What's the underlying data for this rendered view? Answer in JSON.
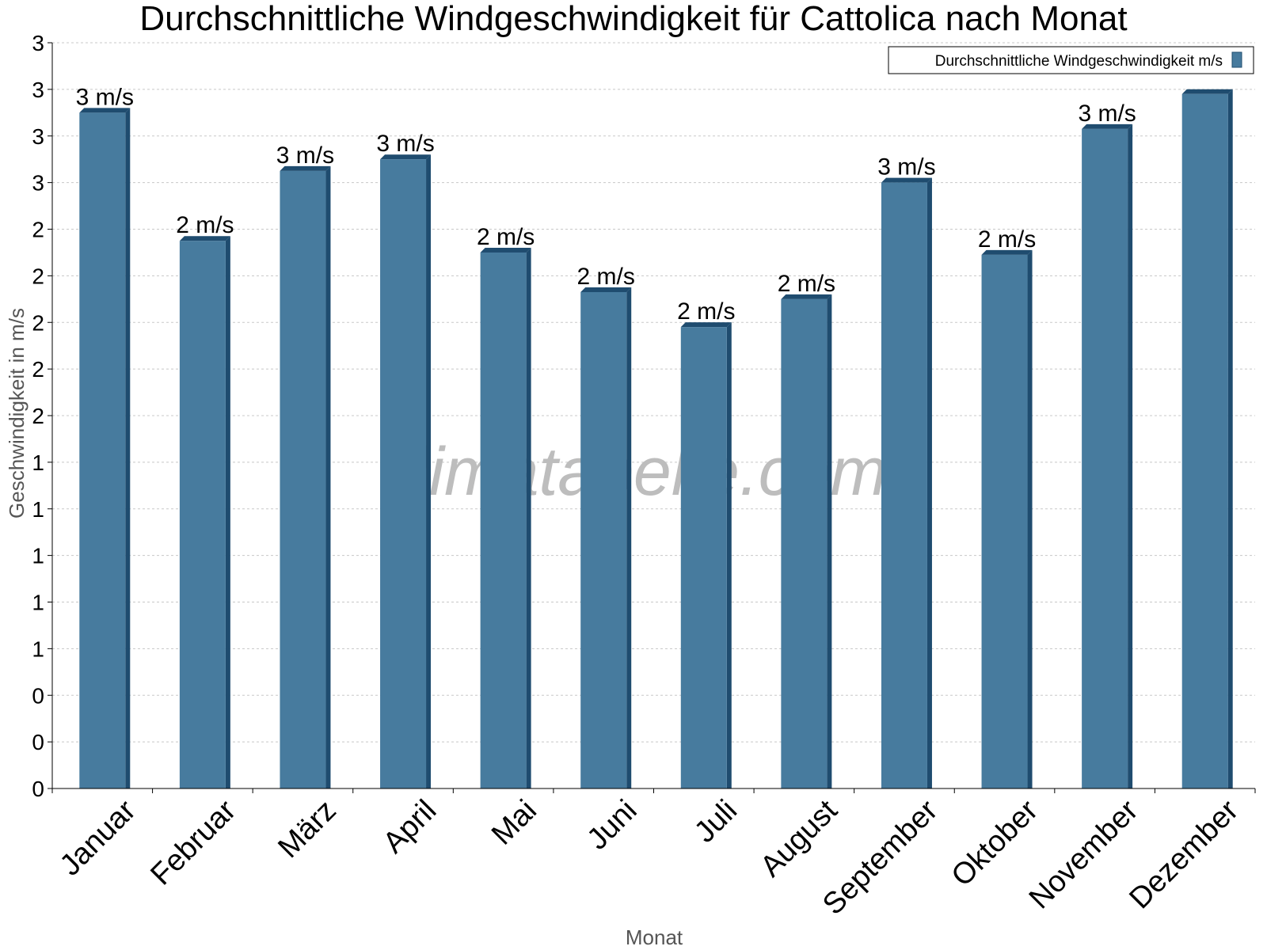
{
  "chart_data": {
    "type": "bar",
    "title": "Durchschnittliche Windgeschwindigkeit für Cattolica nach Monat",
    "xlabel": "Monat",
    "ylabel": "Geschwindigkeit in m/s",
    "categories": [
      "Januar",
      "Februar",
      "März",
      "April",
      "Mai",
      "Juni",
      "Juli",
      "August",
      "September",
      "Oktober",
      "November",
      "Dezember"
    ],
    "series": [
      {
        "name": "Durchschnittliche Windgeschwindigkeit m/s",
        "values": [
          2.9,
          2.35,
          2.65,
          2.7,
          2.3,
          2.13,
          1.98,
          2.1,
          2.6,
          2.29,
          2.83,
          2.98
        ],
        "data_labels": [
          "3 m/s",
          "2 m/s",
          "3 m/s",
          "3 m/s",
          "2 m/s",
          "2 m/s",
          "2 m/s",
          "2 m/s",
          "3 m/s",
          "2 m/s",
          "3 m/s",
          ""
        ]
      }
    ],
    "ylim": [
      0,
      3.2
    ],
    "yticks": [
      0,
      0.2,
      0.4,
      0.6,
      0.8,
      1.0,
      1.2,
      1.4,
      1.6,
      1.8,
      2.0,
      2.2,
      2.4,
      2.6,
      2.8,
      3.0,
      3.2
    ],
    "ytick_labels": [
      "0",
      "0",
      "0",
      "1",
      "1",
      "1",
      "1",
      "1",
      "2",
      "2",
      "2",
      "2",
      "2",
      "3",
      "3",
      "3",
      "3"
    ],
    "grid": true,
    "legend_position": "top-right",
    "colors": {
      "bar": "#477b9e",
      "bar_side": "#1f4c6f",
      "grid": "#c8c8c8"
    },
    "watermark": "klimatabelle.com"
  }
}
